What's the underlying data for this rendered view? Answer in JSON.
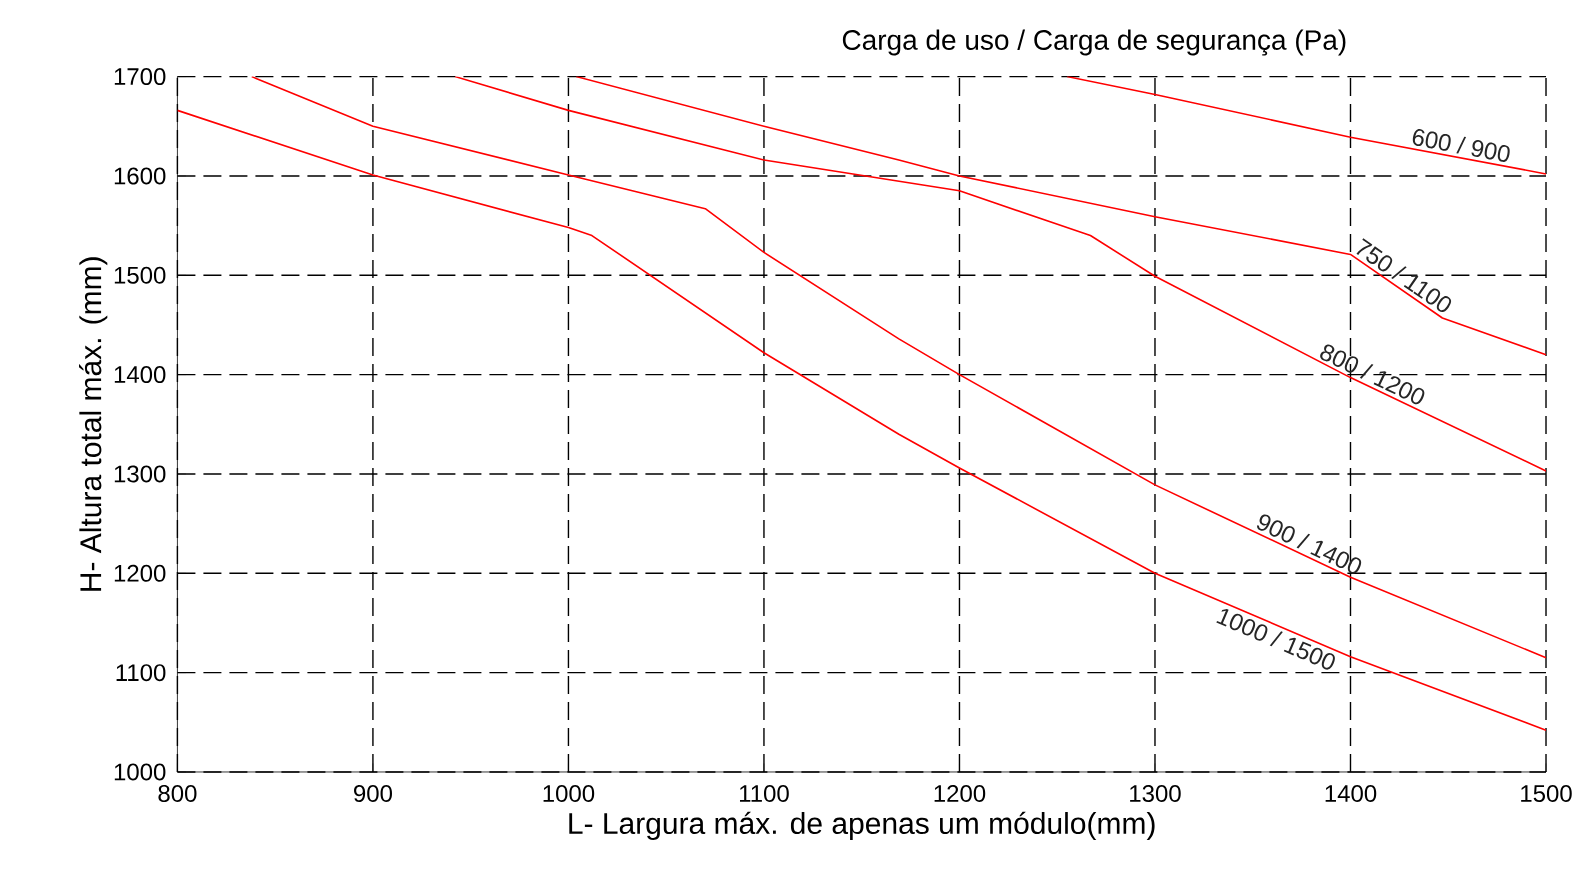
{
  "chart_data": {
    "type": "line",
    "title": "Carga de uso / Carga de segurança (Pa)",
    "xlabel": "L- Largura máx. de apenas um módulo(mm)",
    "ylabel": "H- Altura total máx. (mm)",
    "xlim": [
      800,
      1500
    ],
    "ylim": [
      1000,
      1700
    ],
    "xticks": [
      800,
      900,
      1000,
      1100,
      1200,
      1300,
      1400,
      1500
    ],
    "yticks": [
      1000,
      1100,
      1200,
      1300,
      1400,
      1500,
      1600,
      1700
    ],
    "grid": true,
    "line_style": "solid",
    "marker": "none",
    "series": [
      {
        "name": "600 / 900",
        "color": "#ff0000",
        "x": [
          1255,
          1300,
          1400,
          1500
        ],
        "values": [
          1700,
          1682,
          1639,
          1602
        ]
      },
      {
        "name": "750 / 1100",
        "color": "#ff0000",
        "x": [
          1004,
          1100,
          1169,
          1200,
          1300,
          1400,
          1447,
          1500
        ],
        "values": [
          1700,
          1650,
          1616,
          1600,
          1559,
          1521,
          1457,
          1420
        ]
      },
      {
        "name": "800 / 1200",
        "color": "#ff0000",
        "x": [
          942,
          1000,
          1100,
          1200,
          1267,
          1300,
          1400,
          1500
        ],
        "values": [
          1700,
          1666,
          1616,
          1585,
          1540,
          1499,
          1397,
          1303
        ]
      },
      {
        "name": "900 / 1400",
        "color": "#ff0000",
        "x": [
          838,
          900,
          1000,
          1070,
          1100,
          1169,
          1200,
          1300,
          1400,
          1500
        ],
        "values": [
          1700,
          1650,
          1601,
          1567,
          1523,
          1436,
          1400,
          1289,
          1196,
          1115
        ]
      },
      {
        "name": "1000 / 1500",
        "color": "#ff0000",
        "x": [
          800,
          900,
          1000,
          1012,
          1100,
          1169,
          1200,
          1300,
          1400,
          1500
        ],
        "values": [
          1666,
          1601,
          1548,
          1540,
          1422,
          1340,
          1306,
          1200,
          1116,
          1042
        ]
      }
    ]
  }
}
